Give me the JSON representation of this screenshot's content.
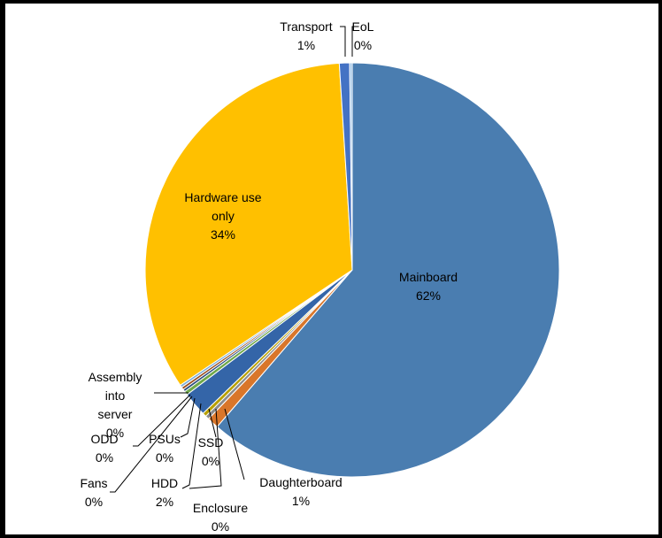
{
  "chart_data": {
    "type": "pie",
    "title": "",
    "start_angle_deg": 0,
    "direction": "clockwise",
    "slices": [
      {
        "label": "Mainboard",
        "value_label": "62%",
        "value": 61.5,
        "color": "#4A7DB0"
      },
      {
        "label": "Daughterboard",
        "value_label": "1%",
        "value": 0.9,
        "color": "#D9762A"
      },
      {
        "label": "Enclosure",
        "value_label": "0%",
        "value": 0.3,
        "color": "#8C8C8C"
      },
      {
        "label": "SSD",
        "value_label": "0%",
        "value": 0.3,
        "color": "#B8A000"
      },
      {
        "label": "HDD",
        "value_label": "2%",
        "value": 1.9,
        "color": "#3465A8"
      },
      {
        "label": "PSUs",
        "value_label": "0%",
        "value": 0.3,
        "color": "#6FA84A"
      },
      {
        "label": "Fans",
        "value_label": "0%",
        "value": 0.2,
        "color": "#2D4E7E"
      },
      {
        "label": "ODD",
        "value_label": "0%",
        "value": 0.2,
        "color": "#9A4E1C"
      },
      {
        "label": "Assembly into server",
        "value_label": "0%",
        "value": 0.2,
        "color": "#7FB0D8"
      },
      {
        "label": "Hardware use only",
        "value_label": "34%",
        "value": 33.5,
        "color": "#FFC000"
      },
      {
        "label": "Transport",
        "value_label": "1%",
        "value": 0.8,
        "color": "#4472C4"
      },
      {
        "label": "EoL",
        "value_label": "0%",
        "value": 0.2,
        "color": "#9DC3E6"
      }
    ]
  }
}
